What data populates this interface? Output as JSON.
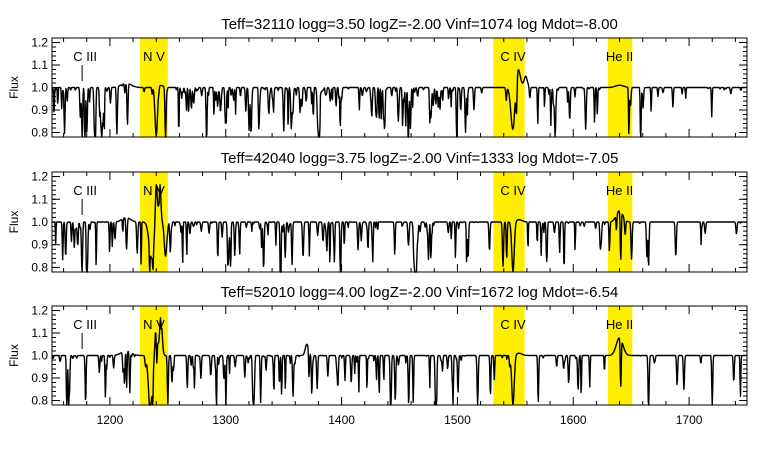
{
  "chart_data": [
    {
      "type": "line",
      "title": "Teff=32110 logg=3.50  logZ=-2.00 Vinf=1074  log Mdot=-8.00",
      "ylabel": "Flux",
      "xlabel": "",
      "xlim": [
        1150,
        1750
      ],
      "ylim": [
        0.78,
        1.22
      ],
      "yticks": [
        0.8,
        0.9,
        1.0,
        1.1,
        1.2
      ],
      "ytick_labels": [
        "0.8",
        "0.9",
        "1.0",
        "1.1",
        "1.2"
      ],
      "highlight_color": "#ffee00",
      "highlight_bands": [
        [
          1226,
          1250
        ],
        [
          1531,
          1558
        ],
        [
          1630,
          1651
        ]
      ],
      "annotations": [
        {
          "text": "C III",
          "x": 1176,
          "tick": true
        },
        {
          "text": "N V",
          "x": 1238,
          "tick": false
        },
        {
          "text": "C IV",
          "x": 1548,
          "tick": false
        },
        {
          "text": "He II",
          "x": 1640,
          "tick": false
        }
      ],
      "features": [
        {
          "x": 1176,
          "y": 0.78,
          "w": 0.6
        },
        {
          "x": 1193,
          "y": 0.78,
          "w": 0.6
        },
        {
          "x": 1206,
          "y": 0.79,
          "w": 0.6
        },
        {
          "x": 1214,
          "y": 1.02,
          "w": 6,
          "emission": true
        },
        {
          "x": 1240,
          "y": 0.78,
          "w": 1.5
        },
        {
          "x": 1243,
          "y": 1.01,
          "w": 4,
          "emission": true
        },
        {
          "x": 1548,
          "y": 0.8,
          "w": 2.5
        },
        {
          "x": 1552,
          "y": 1.09,
          "w": 3,
          "emission": true
        },
        {
          "x": 1559,
          "y": 1.05,
          "w": 2,
          "emission": true
        },
        {
          "x": 1640,
          "y": 1.01,
          "w": 5,
          "emission": true
        }
      ],
      "line_density": 1.0,
      "seed": 11
    },
    {
      "type": "line",
      "title": "Teff=42040 logg=3.75  logZ=-2.00 Vinf=1333  log Mdot=-7.05",
      "ylabel": "Flux",
      "xlabel": "",
      "xlim": [
        1150,
        1750
      ],
      "ylim": [
        0.78,
        1.22
      ],
      "yticks": [
        0.8,
        0.9,
        1.0,
        1.1,
        1.2
      ],
      "ytick_labels": [
        "0.8",
        "0.9",
        "1.0",
        "1.1",
        "1.2"
      ],
      "highlight_color": "#ffee00",
      "highlight_bands": [
        [
          1226,
          1250
        ],
        [
          1531,
          1558
        ],
        [
          1630,
          1651
        ]
      ],
      "annotations": [
        {
          "text": "C III",
          "x": 1176,
          "tick": true
        },
        {
          "text": "N V",
          "x": 1238,
          "tick": false
        },
        {
          "text": "C IV",
          "x": 1548,
          "tick": false
        },
        {
          "text": "He II",
          "x": 1640,
          "tick": false
        }
      ],
      "features": [
        {
          "x": 1176,
          "y": 0.78,
          "w": 0.6
        },
        {
          "x": 1180,
          "y": 0.78,
          "w": 0.6
        },
        {
          "x": 1214,
          "y": 1.02,
          "w": 5,
          "emission": true
        },
        {
          "x": 1236,
          "y": 0.84,
          "w": 3
        },
        {
          "x": 1240,
          "y": 1.19,
          "w": 1.2,
          "emission": true
        },
        {
          "x": 1243,
          "y": 1.2,
          "w": 1.2,
          "emission": true
        },
        {
          "x": 1248,
          "y": 0.85,
          "w": 1.5
        },
        {
          "x": 1548,
          "y": 0.78,
          "w": 1.5
        },
        {
          "x": 1553,
          "y": 1.01,
          "w": 4,
          "emission": true
        },
        {
          "x": 1640,
          "y": 1.05,
          "w": 4,
          "emission": true
        },
        {
          "x": 1641,
          "y": 0.78,
          "w": 0.6
        },
        {
          "x": 1665,
          "y": 0.8,
          "w": 0.6
        }
      ],
      "line_density": 0.8,
      "seed": 23
    },
    {
      "type": "line",
      "title": "Teff=52010 logg=4.00  logZ=-2.00 Vinf=1672  log Mdot=-6.54",
      "ylabel": "Flux",
      "xlabel": "",
      "xlim": [
        1150,
        1750
      ],
      "ylim": [
        0.78,
        1.22
      ],
      "yticks": [
        0.8,
        0.9,
        1.0,
        1.1,
        1.2
      ],
      "ytick_labels": [
        "0.8",
        "0.9",
        "1.0",
        "1.1",
        "1.2"
      ],
      "xticks": [
        1200,
        1300,
        1400,
        1500,
        1600,
        1700
      ],
      "xtick_labels": [
        "1200",
        "1300",
        "1400",
        "1500",
        "1600",
        "1700"
      ],
      "highlight_color": "#ffee00",
      "highlight_bands": [
        [
          1226,
          1250
        ],
        [
          1531,
          1558
        ],
        [
          1630,
          1651
        ]
      ],
      "annotations": [
        {
          "text": "C III",
          "x": 1176,
          "tick": true
        },
        {
          "text": "N V",
          "x": 1238,
          "tick": false
        },
        {
          "text": "C IV",
          "x": 1548,
          "tick": false
        },
        {
          "text": "He II",
          "x": 1640,
          "tick": false
        }
      ],
      "features": [
        {
          "x": 1163,
          "y": 0.85,
          "w": 0.6
        },
        {
          "x": 1165,
          "y": 0.82,
          "w": 0.6
        },
        {
          "x": 1214,
          "y": 1.02,
          "w": 6,
          "emission": true
        },
        {
          "x": 1235,
          "y": 0.78,
          "w": 2.5
        },
        {
          "x": 1240,
          "y": 1.15,
          "w": 1.5,
          "emission": true
        },
        {
          "x": 1244,
          "y": 1.18,
          "w": 1.5,
          "emission": true
        },
        {
          "x": 1370,
          "y": 1.05,
          "w": 2,
          "emission": true
        },
        {
          "x": 1548,
          "y": 0.78,
          "w": 1.5
        },
        {
          "x": 1553,
          "y": 1.01,
          "w": 4,
          "emission": true
        },
        {
          "x": 1640,
          "y": 1.08,
          "w": 4,
          "emission": true
        },
        {
          "x": 1641,
          "y": 0.78,
          "w": 0.6
        },
        {
          "x": 1665,
          "y": 0.8,
          "w": 0.6
        },
        {
          "x": 1720,
          "y": 0.78,
          "w": 0.6
        }
      ],
      "line_density": 0.7,
      "seed": 37
    }
  ]
}
